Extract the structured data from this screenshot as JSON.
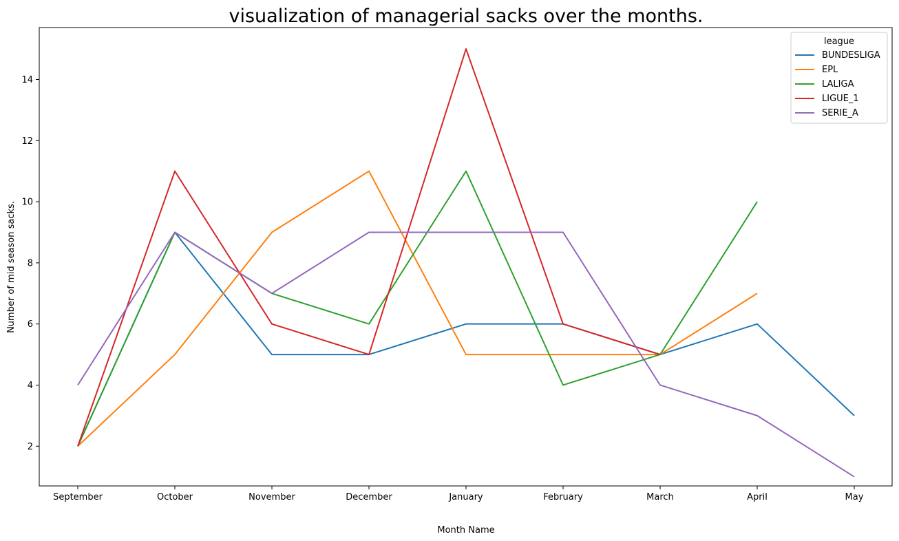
{
  "chart_data": {
    "type": "line",
    "title": "visualization of managerial sacks over the months.",
    "xlabel": "Month Name",
    "ylabel": "Number of mid season sacks.",
    "categories": [
      "September",
      "October",
      "November",
      "December",
      "January",
      "February",
      "March",
      "April",
      "May"
    ],
    "ylim": [
      0.7,
      15.7
    ],
    "yticks": [
      2,
      4,
      6,
      8,
      10,
      12,
      14
    ],
    "grid": false,
    "legend": {
      "title": "league",
      "placement": "top-right"
    },
    "series": [
      {
        "name": "BUNDESLIGA",
        "color": "#1f77b4",
        "values": [
          2,
          9,
          5,
          5,
          6,
          6,
          5,
          6,
          3
        ]
      },
      {
        "name": "EPL",
        "color": "#ff7f0e",
        "values": [
          2,
          5,
          9,
          11,
          5,
          5,
          5,
          7,
          null
        ]
      },
      {
        "name": "LALIGA",
        "color": "#2ca02c",
        "values": [
          2,
          9,
          7,
          6,
          11,
          4,
          5,
          10,
          null
        ]
      },
      {
        "name": "LIGUE_1",
        "color": "#d62728",
        "values": [
          2,
          11,
          6,
          5,
          15,
          6,
          5,
          null,
          null
        ]
      },
      {
        "name": "SERIE_A",
        "color": "#9467bd",
        "values": [
          4,
          9,
          7,
          9,
          9,
          9,
          4,
          3,
          1
        ]
      }
    ]
  }
}
